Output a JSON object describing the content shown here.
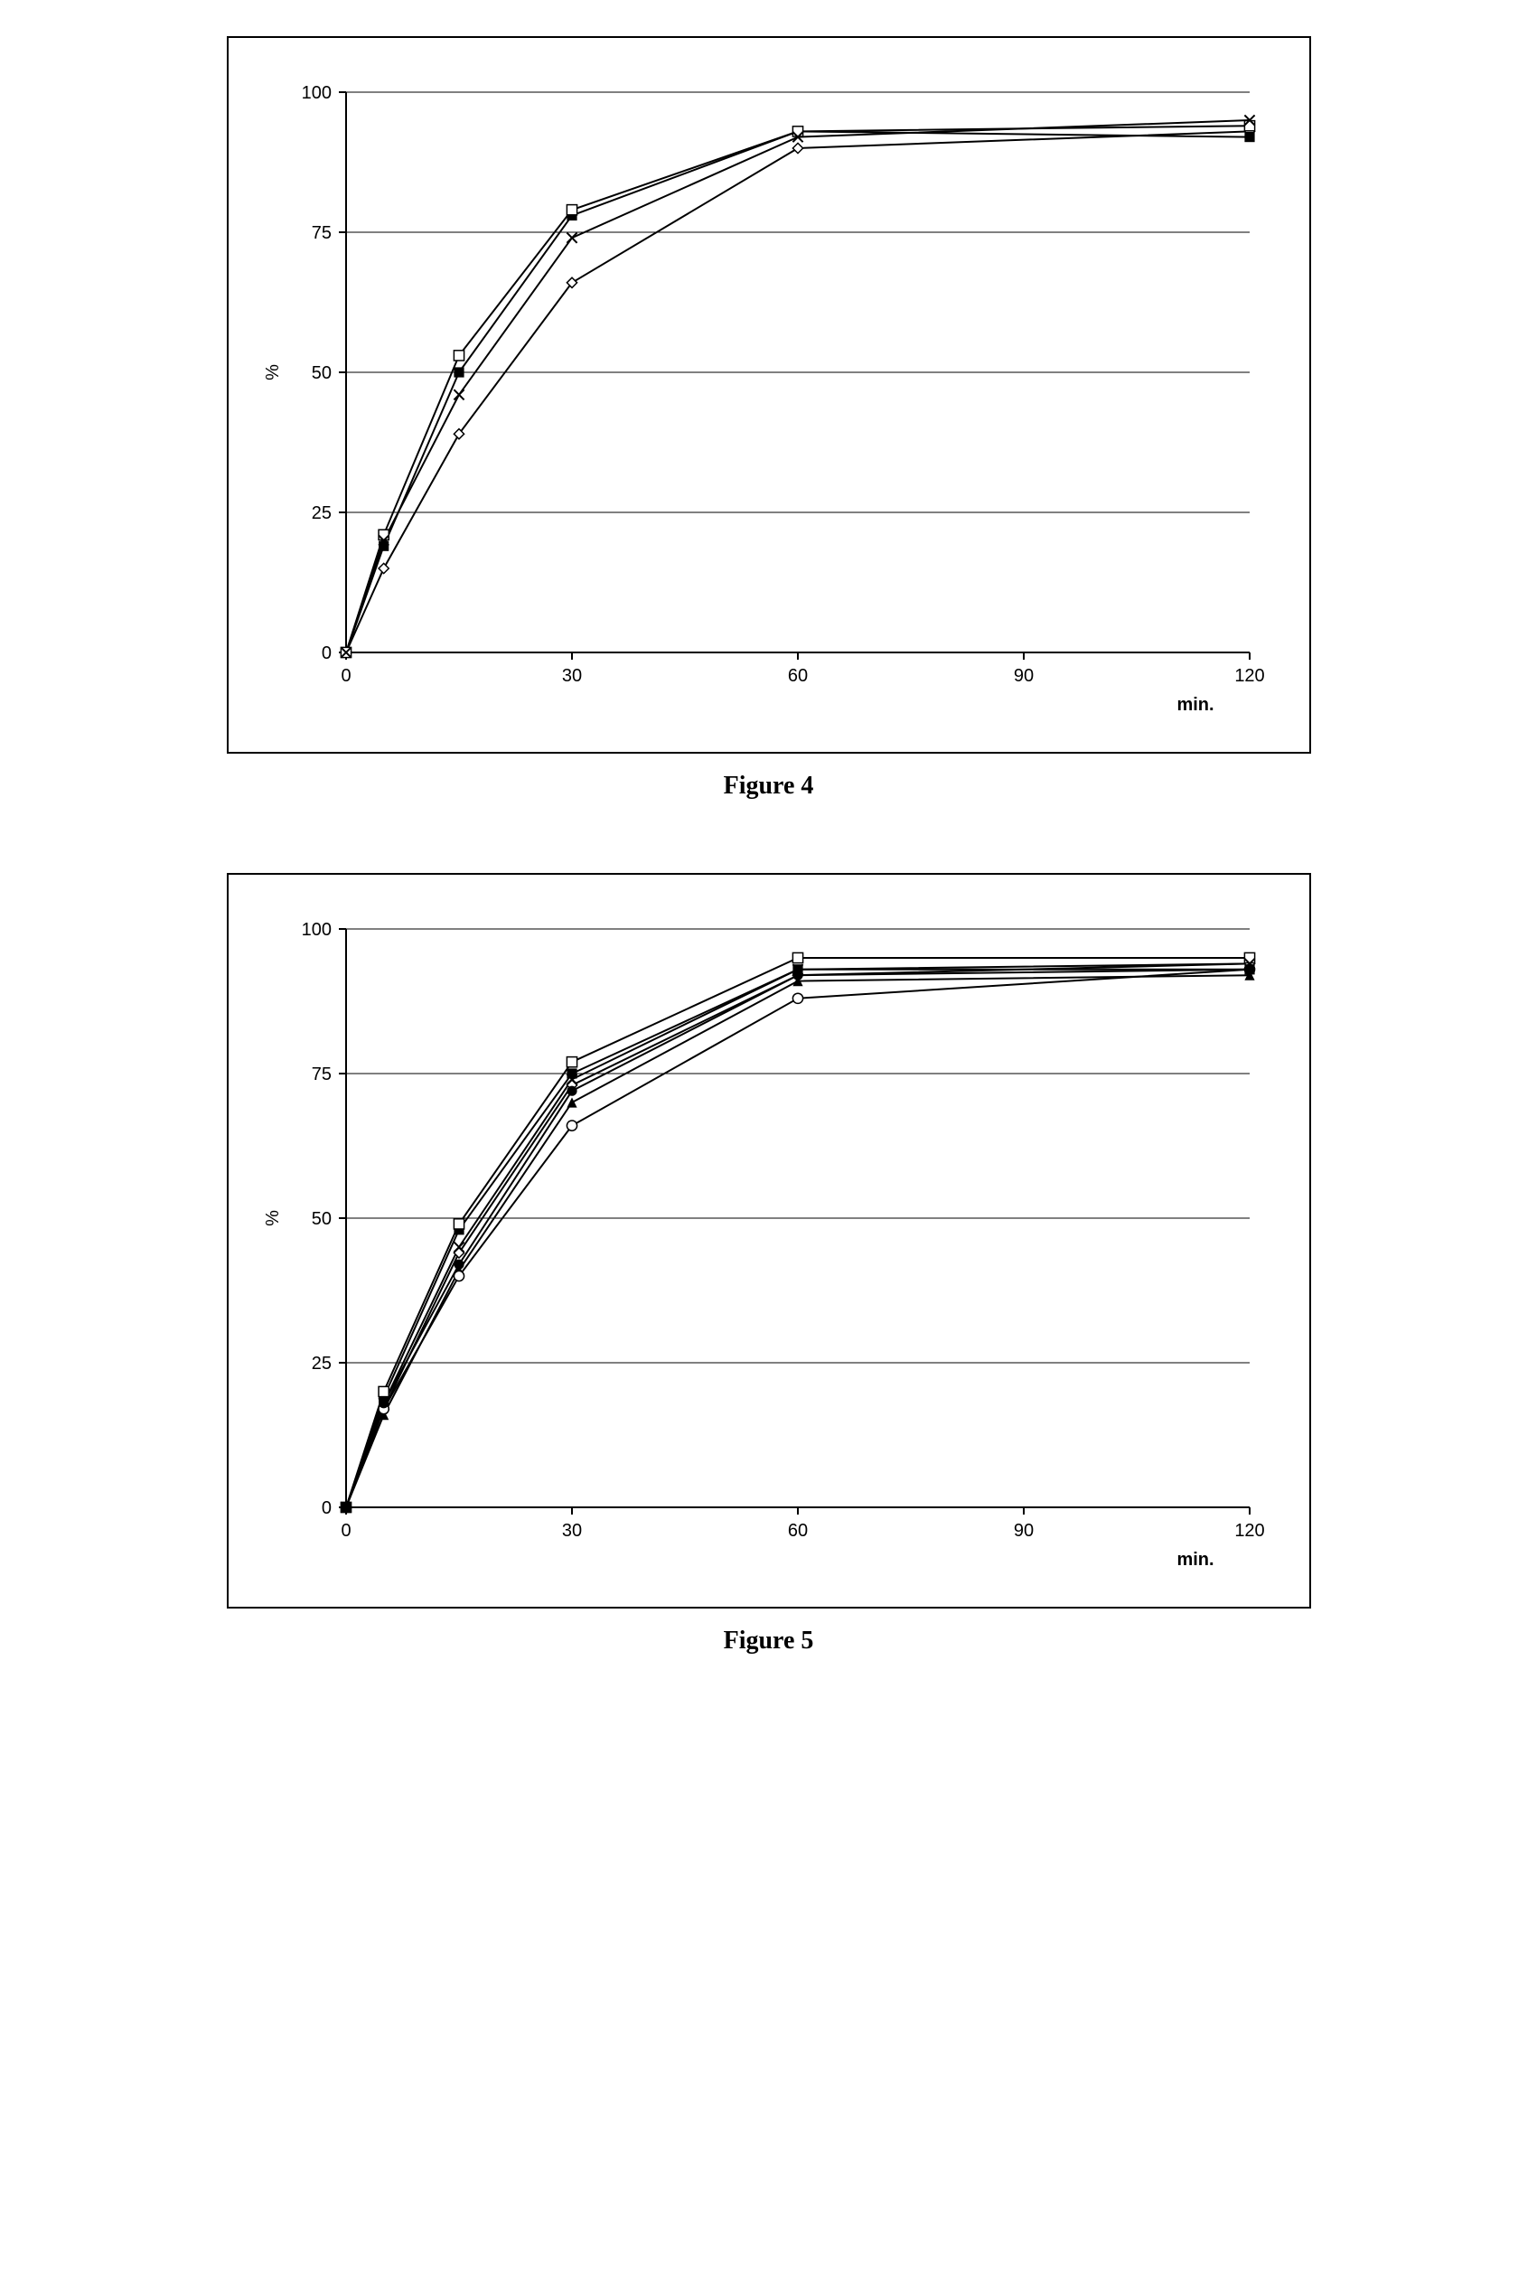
{
  "figure4": {
    "caption": "Figure 4",
    "type": "line",
    "xlabel": "min.",
    "ylabel": "%",
    "xlim": [
      0,
      120
    ],
    "ylim": [
      0,
      100
    ],
    "xticks": [
      0,
      30,
      60,
      90,
      120
    ],
    "yticks": [
      0,
      25,
      50,
      75,
      100
    ],
    "axis_color": "#000000",
    "grid_color": "#000000",
    "tick_length": 8,
    "line_width": 2,
    "marker_size": 8,
    "background_color": "#ffffff",
    "label_fontsize": 20,
    "tick_fontsize": 20,
    "series": [
      {
        "marker": "diamond-open",
        "color": "#000000",
        "x": [
          0,
          5,
          15,
          30,
          60,
          120
        ],
        "y": [
          0,
          15,
          39,
          66,
          90,
          93
        ]
      },
      {
        "marker": "square-filled",
        "color": "#000000",
        "x": [
          0,
          5,
          15,
          30,
          60,
          120
        ],
        "y": [
          0,
          19,
          50,
          78,
          93,
          92
        ]
      },
      {
        "marker": "square-open",
        "color": "#000000",
        "x": [
          0,
          5,
          15,
          30,
          60,
          120
        ],
        "y": [
          0,
          21,
          53,
          79,
          93,
          94
        ]
      },
      {
        "marker": "x",
        "color": "#000000",
        "x": [
          0,
          5,
          15,
          30,
          60,
          120
        ],
        "y": [
          0,
          20,
          46,
          74,
          92,
          95
        ]
      }
    ]
  },
  "figure5": {
    "caption": "Figure 5",
    "type": "line",
    "xlabel": "min.",
    "ylabel": "%",
    "xlim": [
      0,
      120
    ],
    "ylim": [
      0,
      100
    ],
    "xticks": [
      0,
      30,
      60,
      90,
      120
    ],
    "yticks": [
      0,
      25,
      50,
      75,
      100
    ],
    "axis_color": "#000000",
    "grid_color": "#000000",
    "tick_length": 8,
    "line_width": 2,
    "marker_size": 8,
    "background_color": "#ffffff",
    "label_fontsize": 20,
    "tick_fontsize": 20,
    "series": [
      {
        "marker": "diamond-open",
        "color": "#000000",
        "x": [
          0,
          5,
          15,
          30,
          60,
          120
        ],
        "y": [
          0,
          17,
          44,
          73,
          92,
          94
        ]
      },
      {
        "marker": "square-filled",
        "color": "#000000",
        "x": [
          0,
          5,
          15,
          30,
          60,
          120
        ],
        "y": [
          0,
          19,
          48,
          75,
          93,
          93
        ]
      },
      {
        "marker": "square-open",
        "color": "#000000",
        "x": [
          0,
          5,
          15,
          30,
          60,
          120
        ],
        "y": [
          0,
          20,
          49,
          77,
          95,
          95
        ]
      },
      {
        "marker": "x",
        "color": "#000000",
        "x": [
          0,
          5,
          15,
          30,
          60,
          120
        ],
        "y": [
          0,
          18,
          45,
          74,
          93,
          94
        ]
      },
      {
        "marker": "triangle-filled",
        "color": "#000000",
        "x": [
          0,
          5,
          15,
          30,
          60,
          120
        ],
        "y": [
          0,
          16,
          41,
          70,
          91,
          92
        ]
      },
      {
        "marker": "circle-open",
        "color": "#000000",
        "x": [
          0,
          5,
          15,
          30,
          60,
          120
        ],
        "y": [
          0,
          17,
          40,
          66,
          88,
          93
        ]
      },
      {
        "marker": "circle-filled",
        "color": "#000000",
        "x": [
          0,
          5,
          15,
          30,
          60,
          120
        ],
        "y": [
          0,
          18,
          42,
          72,
          92,
          93
        ]
      }
    ]
  }
}
